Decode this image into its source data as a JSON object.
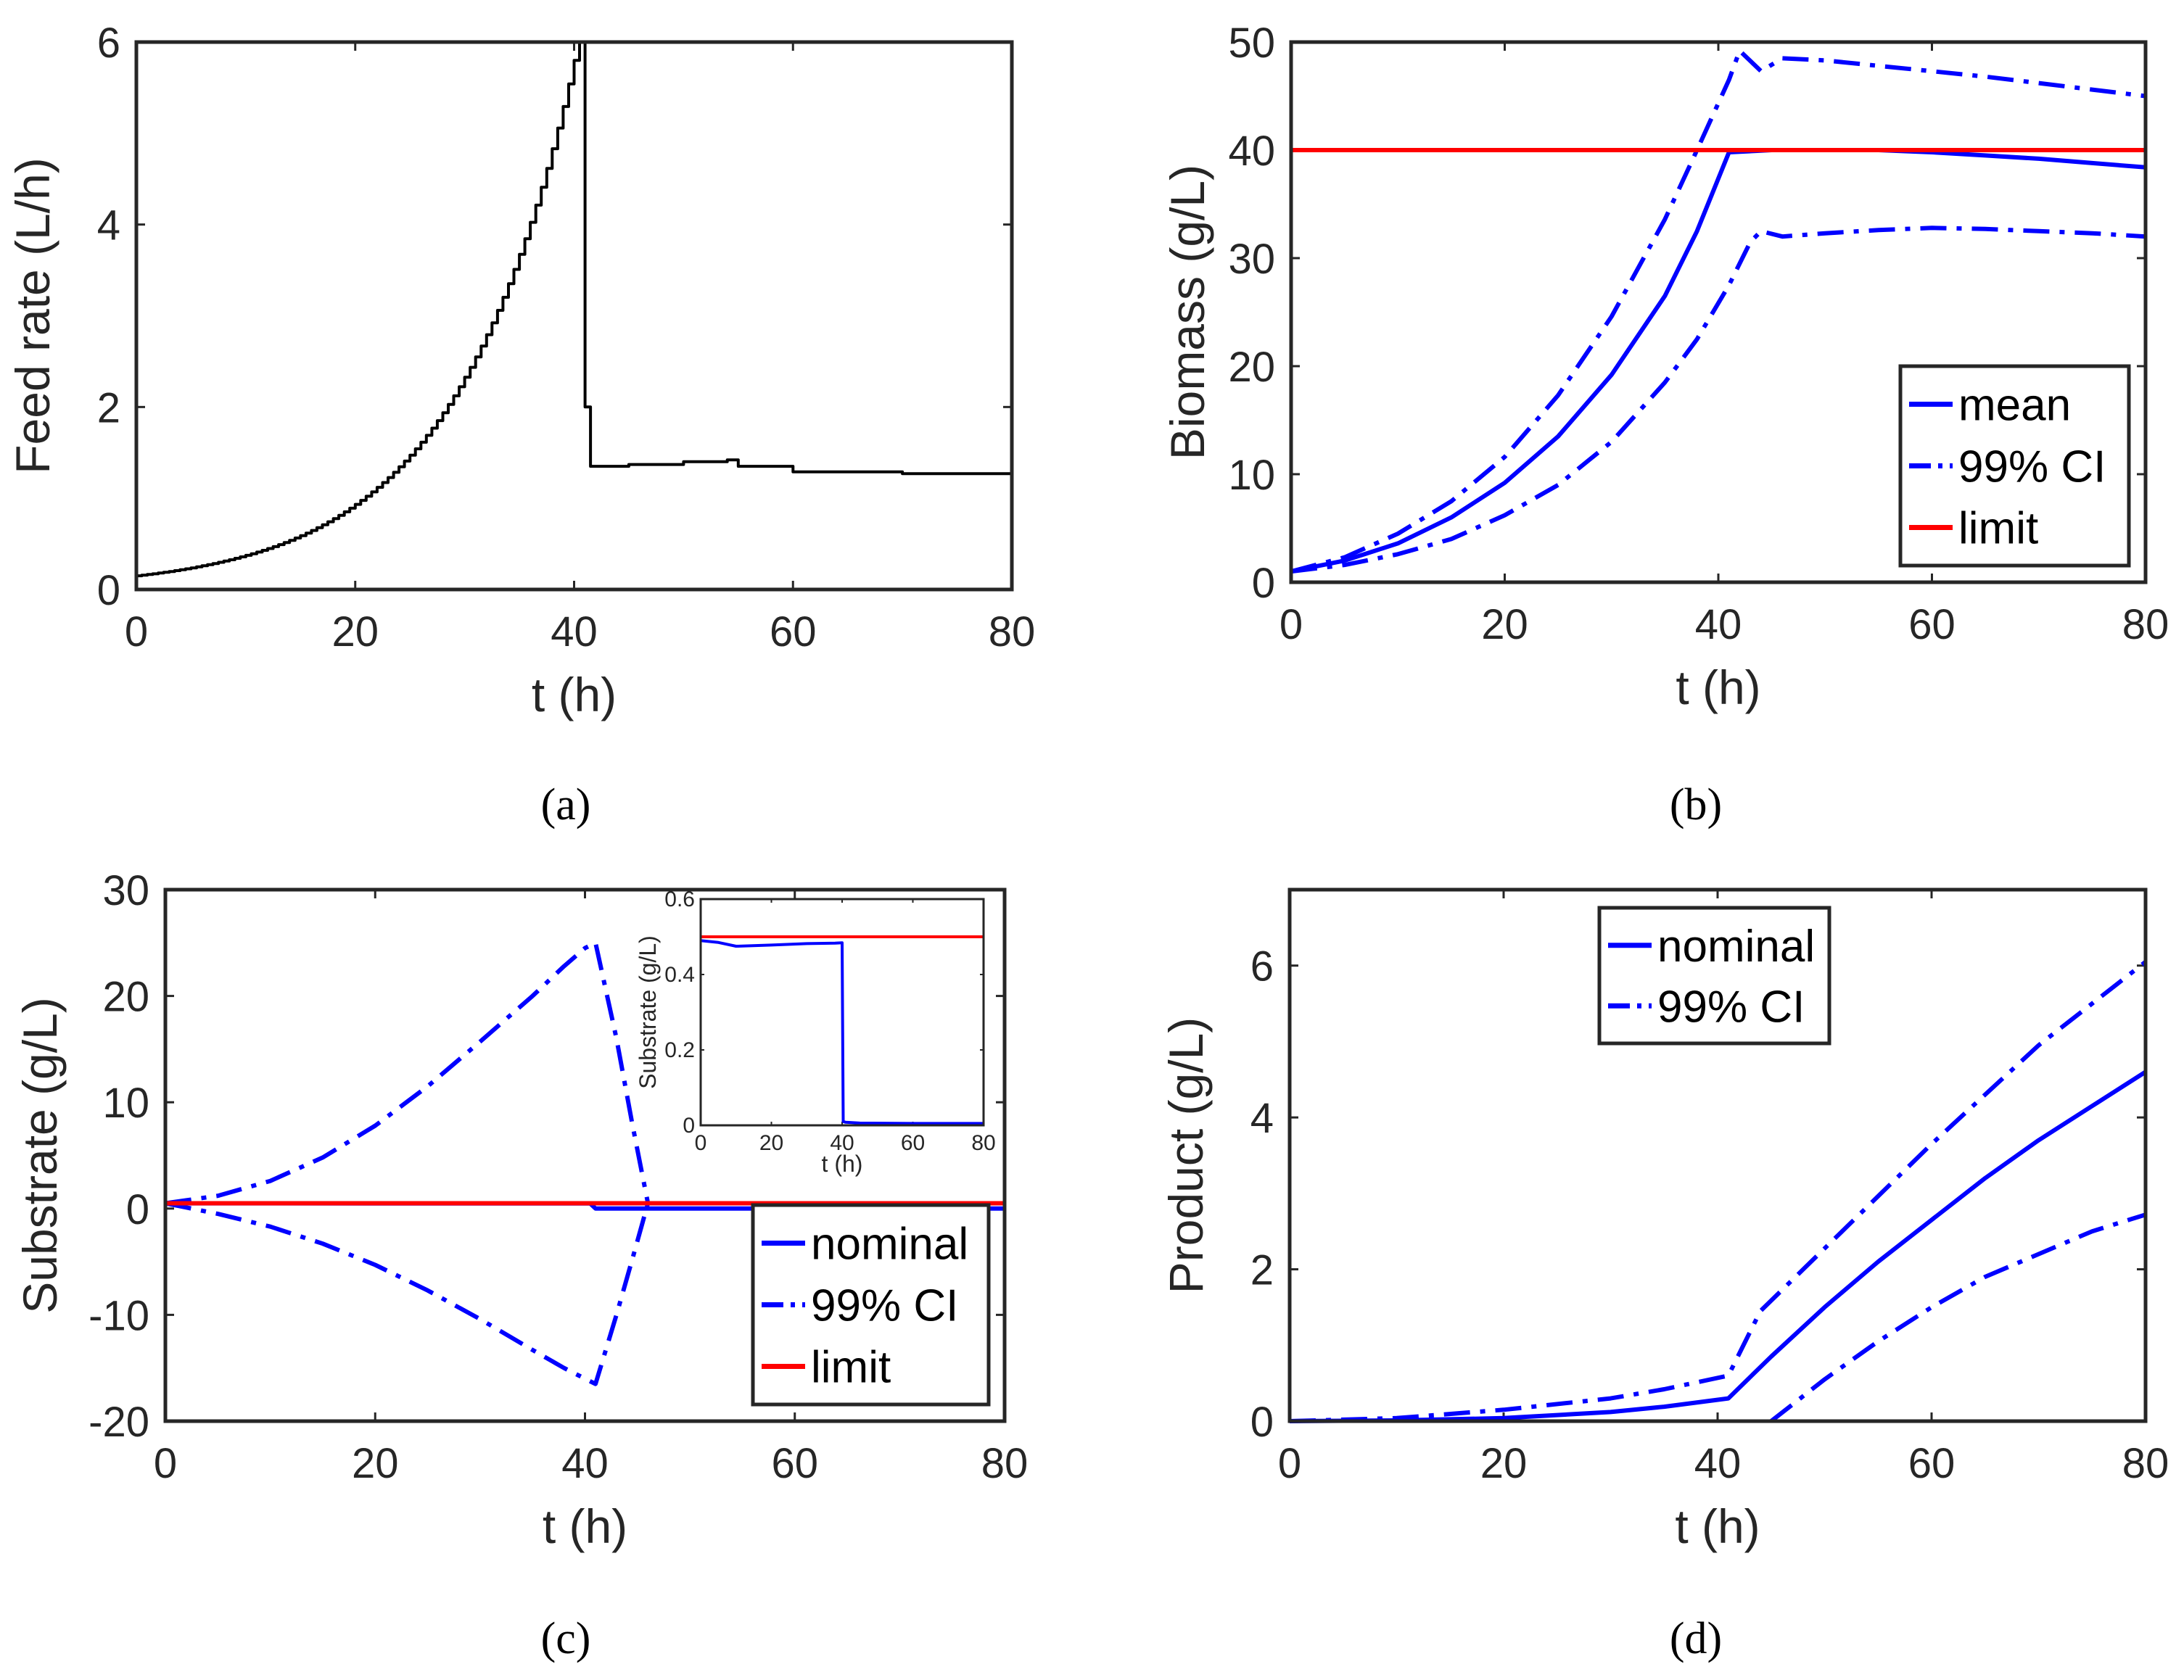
{
  "colors": {
    "blue": "#0000ff",
    "red": "#ff0000",
    "black": "#000000",
    "axis": "#262626"
  },
  "chart_data": [
    {
      "id": "a",
      "type": "line",
      "caption": "(a)",
      "xlabel": "t (h)",
      "ylabel": "Feed rate (L/h)",
      "xlim": [
        0,
        80
      ],
      "ylim": [
        0,
        6
      ],
      "xticks": [
        0,
        20,
        40,
        60,
        80
      ],
      "yticks": [
        0,
        2,
        4,
        6
      ],
      "legend": null,
      "series": [
        {
          "name": "feed rate",
          "style": "step",
          "color": "#000000",
          "x": [
            0,
            40,
            40.5,
            41,
            41.5,
            42,
            45,
            50,
            54,
            55,
            60,
            70,
            80
          ],
          "y": [
            0.15,
            5.8,
            6.0,
            2.0,
            1.35,
            1.35,
            1.37,
            1.4,
            1.42,
            1.35,
            1.29,
            1.27,
            1.27
          ]
        }
      ]
    },
    {
      "id": "b",
      "type": "line",
      "caption": "(b)",
      "xlabel": "t (h)",
      "ylabel": "Biomass (g/L)",
      "xlim": [
        0,
        80
      ],
      "ylim": [
        0,
        50
      ],
      "xticks": [
        0,
        20,
        40,
        60,
        80
      ],
      "yticks": [
        0,
        10,
        20,
        30,
        40,
        50
      ],
      "legend": {
        "location": "lower-right",
        "entries": [
          "mean",
          "99% CI",
          "limit"
        ]
      },
      "series": [
        {
          "name": "mean",
          "style": "solid",
          "color": "#0000ff",
          "x": [
            0,
            5,
            10,
            15,
            20,
            25,
            30,
            35,
            38,
            41,
            45,
            50,
            55,
            60,
            65,
            70,
            75,
            80
          ],
          "y": [
            1.0,
            2.0,
            3.6,
            6.0,
            9.2,
            13.5,
            19.2,
            26.5,
            32.5,
            39.8,
            40.0,
            40.0,
            40.0,
            39.8,
            39.5,
            39.2,
            38.8,
            38.4
          ]
        },
        {
          "name": "99% CI upper",
          "style": "dashdot",
          "color": "#0000ff",
          "x": [
            0,
            5,
            10,
            15,
            20,
            25,
            30,
            35,
            38,
            41,
            42,
            44,
            46,
            50,
            55,
            60,
            65,
            70,
            75,
            80
          ],
          "y": [
            1.0,
            2.3,
            4.5,
            7.5,
            11.6,
            17.3,
            24.6,
            33.6,
            40.0,
            46.5,
            49.2,
            47.3,
            48.5,
            48.3,
            47.8,
            47.3,
            46.8,
            46.2,
            45.6,
            45.0
          ]
        },
        {
          "name": "99% CI lower",
          "style": "dashdot",
          "color": "#0000ff",
          "x": [
            0,
            5,
            10,
            15,
            20,
            25,
            30,
            35,
            38,
            41,
            43,
            44,
            46,
            50,
            55,
            60,
            65,
            70,
            75,
            80
          ],
          "y": [
            1.0,
            1.6,
            2.6,
            4.0,
            6.2,
            9.0,
            13.0,
            18.5,
            22.5,
            27.5,
            31.5,
            32.5,
            32.0,
            32.3,
            32.6,
            32.8,
            32.7,
            32.5,
            32.3,
            32.0
          ]
        },
        {
          "name": "limit",
          "style": "solid",
          "color": "#ff0000",
          "x": [
            0,
            80
          ],
          "y": [
            40,
            40
          ]
        }
      ]
    },
    {
      "id": "c",
      "type": "line",
      "caption": "(c)",
      "xlabel": "t (h)",
      "ylabel": "Substrate (g/L)",
      "xlim": [
        0,
        80
      ],
      "ylim": [
        -20,
        30
      ],
      "xticks": [
        0,
        20,
        40,
        60,
        80
      ],
      "yticks": [
        -20,
        -10,
        0,
        10,
        20,
        30
      ],
      "legend": {
        "location": "lower-right",
        "entries": [
          "nominal",
          "99% CI",
          "limit"
        ]
      },
      "series": [
        {
          "name": "nominal",
          "style": "solid",
          "color": "#0000ff",
          "x": [
            0,
            40,
            40.5,
            41,
            80
          ],
          "y": [
            0.49,
            0.48,
            0.48,
            0.01,
            0.01
          ]
        },
        {
          "name": "99% CI upper",
          "style": "dashdot",
          "color": "#0000ff",
          "x": [
            0,
            5,
            10,
            15,
            20,
            25,
            30,
            35,
            38,
            40,
            41,
            43,
            44.5,
            46
          ],
          "y": [
            0.5,
            1.2,
            2.6,
            4.8,
            7.8,
            11.5,
            15.7,
            20.0,
            22.8,
            24.5,
            25.0,
            16.0,
            8.0,
            0.5
          ]
        },
        {
          "name": "99% CI lower",
          "style": "dashdot",
          "color": "#0000ff",
          "x": [
            0,
            5,
            10,
            15,
            20,
            25,
            30,
            35,
            38,
            40,
            41,
            43,
            44.5,
            46
          ],
          "y": [
            0.5,
            -0.5,
            -1.7,
            -3.3,
            -5.3,
            -7.7,
            -10.4,
            -13.3,
            -15.0,
            -16.0,
            -16.5,
            -10.0,
            -4.8,
            0.5
          ]
        },
        {
          "name": "limit",
          "style": "solid",
          "color": "#ff0000",
          "x": [
            0,
            80
          ],
          "y": [
            0.5,
            0.5
          ]
        }
      ],
      "inset": {
        "ylabel": "Substrate (g/L)",
        "xlabel": "t (h)",
        "xlim": [
          0,
          80
        ],
        "ylim": [
          0,
          0.6
        ],
        "xticks": [
          0,
          20,
          40,
          60,
          80
        ],
        "yticks": [
          0,
          0.2,
          0.4,
          0.6
        ],
        "series": [
          {
            "name": "nominal",
            "style": "solid",
            "color": "#0000ff",
            "x": [
              0,
              5,
              10,
              20,
              30,
              38,
              40,
              40.3,
              41,
              45,
              60,
              80
            ],
            "y": [
              0.49,
              0.485,
              0.475,
              0.478,
              0.482,
              0.483,
              0.484,
              0.01,
              0.008,
              0.006,
              0.005,
              0.005
            ]
          },
          {
            "name": "limit",
            "style": "solid",
            "color": "#ff0000",
            "x": [
              0,
              80
            ],
            "y": [
              0.5,
              0.5
            ]
          }
        ]
      }
    },
    {
      "id": "d",
      "type": "line",
      "caption": "(d)",
      "xlabel": "t (h)",
      "ylabel": "Product (g/L)",
      "xlim": [
        0,
        80
      ],
      "ylim": [
        0,
        7
      ],
      "xticks": [
        0,
        20,
        40,
        60,
        80
      ],
      "yticks": [
        0,
        2,
        4,
        6
      ],
      "legend": {
        "location": "top-center",
        "entries": [
          "nominal",
          "99% CI"
        ]
      },
      "series": [
        {
          "name": "nominal",
          "style": "solid",
          "color": "#0000ff",
          "x": [
            0,
            10,
            20,
            30,
            35,
            41,
            45,
            50,
            55,
            60,
            65,
            70,
            75,
            80
          ],
          "y": [
            0,
            0.01,
            0.04,
            0.12,
            0.19,
            0.3,
            0.85,
            1.5,
            2.1,
            2.65,
            3.2,
            3.7,
            4.15,
            4.6
          ]
        },
        {
          "name": "99% CI upper",
          "style": "dashdot",
          "color": "#0000ff",
          "x": [
            0,
            10,
            20,
            30,
            35,
            41,
            44,
            48,
            52,
            56,
            60,
            65,
            70,
            75,
            80
          ],
          "y": [
            0,
            0.04,
            0.15,
            0.3,
            0.42,
            0.6,
            1.45,
            2.0,
            2.55,
            3.1,
            3.65,
            4.3,
            4.95,
            5.5,
            6.05
          ]
        },
        {
          "name": "99% CI lower",
          "style": "dashdot",
          "color": "#0000ff",
          "x": [
            45,
            50,
            55,
            60,
            65,
            70,
            75,
            80
          ],
          "y": [
            0,
            0.55,
            1.05,
            1.5,
            1.9,
            2.2,
            2.5,
            2.72
          ]
        }
      ]
    }
  ]
}
